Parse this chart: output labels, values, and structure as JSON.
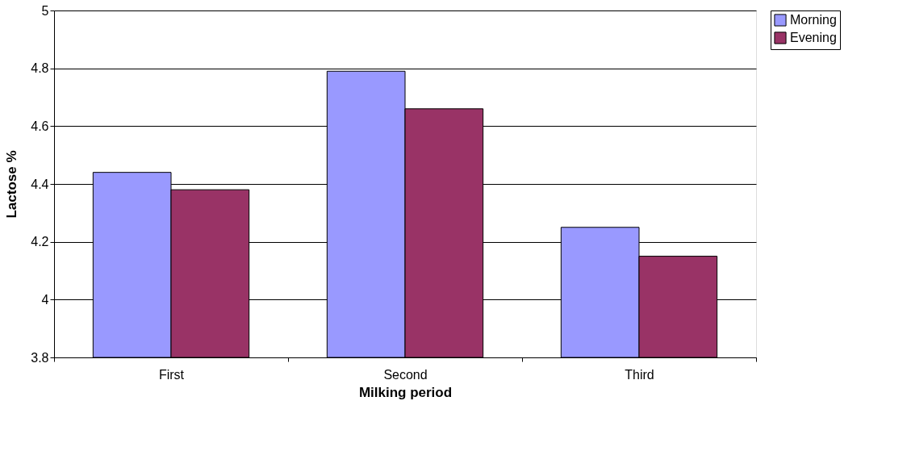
{
  "chart_data": {
    "type": "bar",
    "xlabel": "Milking period",
    "ylabel": "Lactose %",
    "categories": [
      "First",
      "Second",
      "Third"
    ],
    "series": [
      {
        "name": "Morning",
        "color": "#9999ff",
        "values": [
          4.44,
          4.79,
          4.25
        ]
      },
      {
        "name": "Evening",
        "color": "#993366",
        "values": [
          4.38,
          4.66,
          4.15
        ]
      }
    ],
    "ylim": [
      3.8,
      5
    ],
    "yticks": [
      3.8,
      4,
      4.2,
      4.4,
      4.6,
      4.8,
      5
    ],
    "grid": "y",
    "legend": "right"
  }
}
